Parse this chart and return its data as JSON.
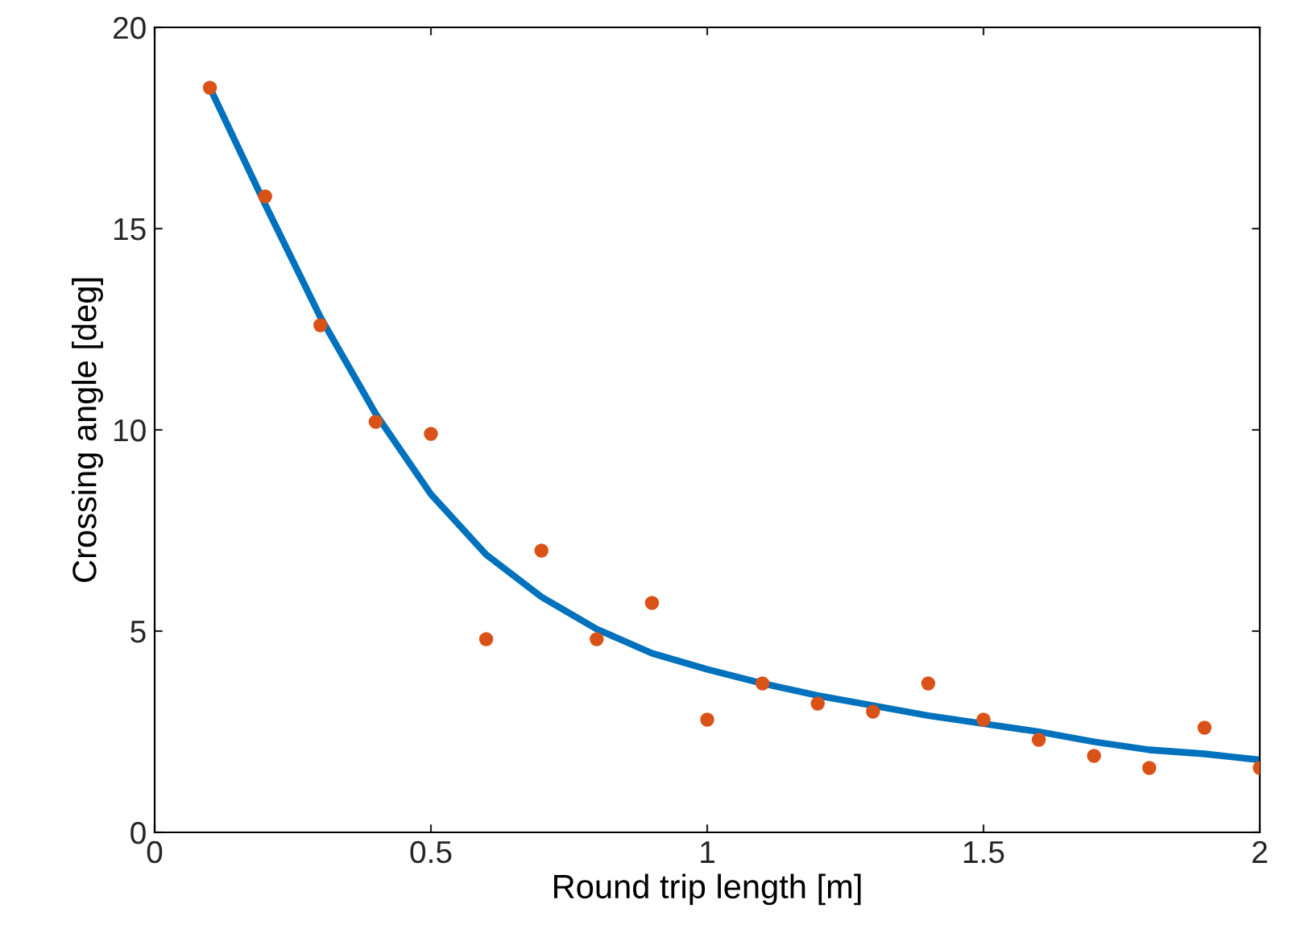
{
  "chart_data": {
    "type": "scatter",
    "xlabel": "Round trip length [m]",
    "ylabel": "Crossing angle [deg]",
    "xlim": [
      0,
      2
    ],
    "ylim": [
      0,
      20
    ],
    "xticks": [
      0,
      0.5,
      1,
      1.5,
      2
    ],
    "yticks": [
      0,
      5,
      10,
      15,
      20
    ],
    "grid": false,
    "legend": false,
    "series": [
      {
        "type": "line",
        "color": "#0072bd",
        "x": [
          0.1,
          0.2,
          0.3,
          0.4,
          0.5,
          0.6,
          0.7,
          0.8,
          0.9,
          1.0,
          1.1,
          1.2,
          1.3,
          1.4,
          1.5,
          1.6,
          1.7,
          1.8,
          1.9,
          2.0
        ],
        "values": [
          18.5,
          15.6,
          12.8,
          10.4,
          8.4,
          6.9,
          5.85,
          5.05,
          4.45,
          4.05,
          3.7,
          3.4,
          3.15,
          2.9,
          2.7,
          2.5,
          2.25,
          2.05,
          1.95,
          1.8
        ],
        "line_style": "solid",
        "marker": "none"
      },
      {
        "color": "#d95319",
        "x": [
          0.1,
          0.2,
          0.3,
          0.4,
          0.5,
          0.6,
          0.7,
          0.8,
          0.9,
          1.0,
          1.1,
          1.2,
          1.3,
          1.4,
          1.5,
          1.6,
          1.7,
          1.8,
          1.9,
          2.0
        ],
        "values": [
          18.5,
          15.8,
          12.6,
          10.2,
          9.9,
          4.8,
          7.0,
          4.8,
          5.7,
          2.8,
          3.7,
          3.2,
          3.0,
          3.7,
          2.8,
          2.3,
          1.9,
          1.6,
          2.6,
          1.6
        ],
        "marker": "circle"
      }
    ]
  }
}
